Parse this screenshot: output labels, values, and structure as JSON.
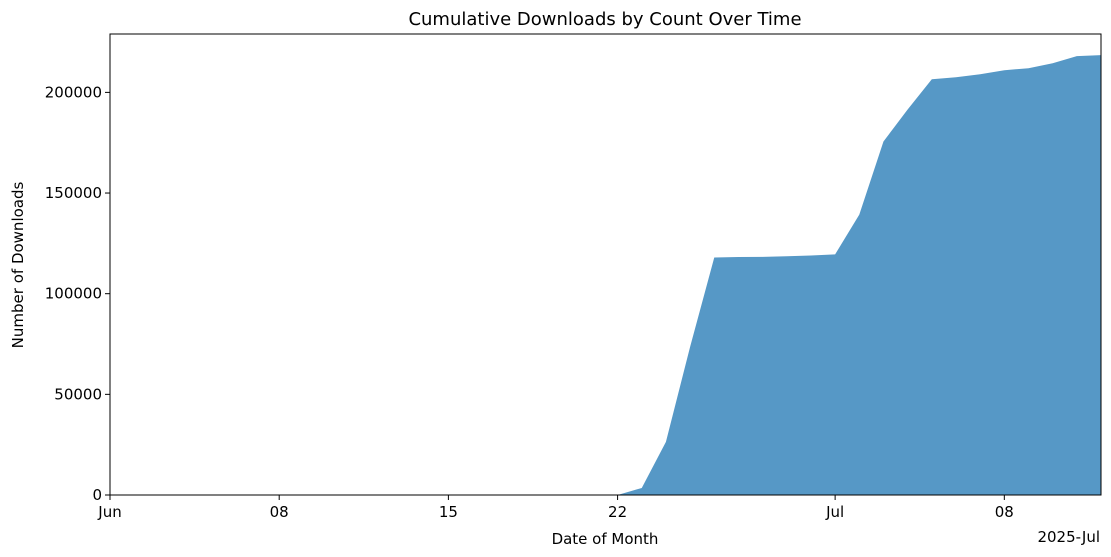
{
  "chart_data": {
    "type": "area",
    "title": "Cumulative Downloads by Count Over Time",
    "x_label": "Date of Month",
    "y_label": "Number of Downloads",
    "x_offset_label": "2025-Jul",
    "x": [
      "2025-06-22",
      "2025-06-23",
      "2025-06-24",
      "2025-06-25",
      "2025-06-26",
      "2025-06-27",
      "2025-06-28",
      "2025-06-29",
      "2025-06-30",
      "2025-07-01",
      "2025-07-02",
      "2025-07-03",
      "2025-07-04",
      "2025-07-05",
      "2025-07-06",
      "2025-07-07",
      "2025-07-08",
      "2025-07-09",
      "2025-07-10",
      "2025-07-11",
      "2025-07-12"
    ],
    "series": [
      {
        "name": "Downloads",
        "color": "#5698c6",
        "values": [
          0,
          3500,
          26400,
          73600,
          118000,
          118200,
          118300,
          118600,
          119000,
          119500,
          139300,
          175600,
          191500,
          206500,
          207500,
          209000,
          211000,
          212000,
          214500,
          218000,
          218500
        ]
      }
    ],
    "xlim": [
      "2025-06-01",
      "2025-07-12"
    ],
    "xticks": [
      {
        "value": "2025-06-01",
        "label": "Jun"
      },
      {
        "value": "2025-06-08",
        "label": "08"
      },
      {
        "value": "2025-06-15",
        "label": "15"
      },
      {
        "value": "2025-06-22",
        "label": "22"
      },
      {
        "value": "2025-07-01",
        "label": "Jul"
      },
      {
        "value": "2025-07-08",
        "label": "08"
      }
    ],
    "ylim": [
      0,
      229000
    ],
    "yticks": [
      0,
      50000,
      100000,
      150000,
      200000
    ],
    "grid": false
  }
}
